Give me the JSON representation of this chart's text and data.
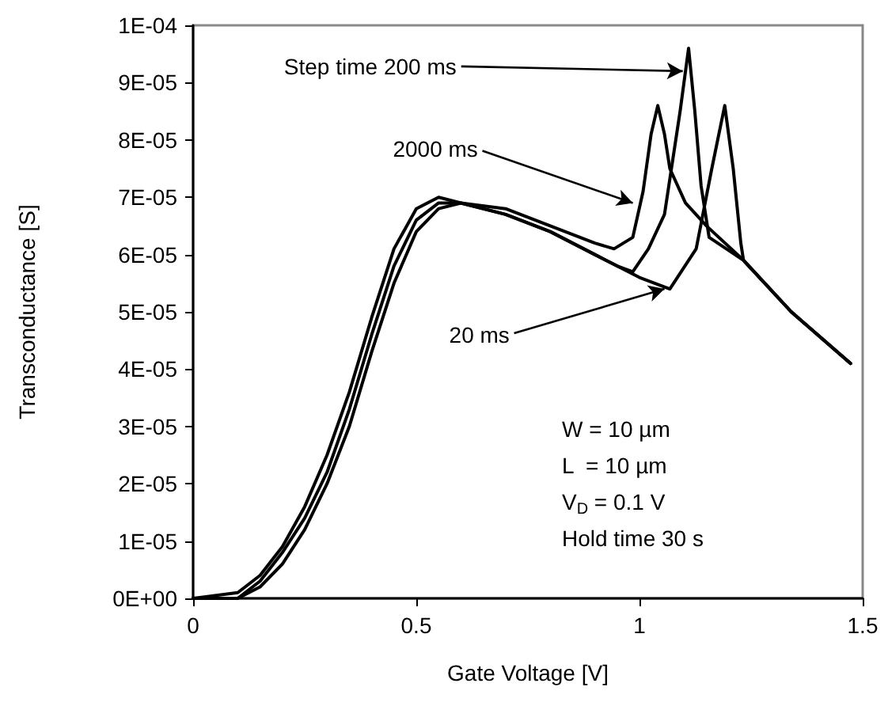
{
  "chart_data": {
    "type": "line",
    "xlabel": "Gate Voltage [V]",
    "ylabel": "Transconductance [S]",
    "series": [
      {
        "color": "#000000",
        "x": [
          0,
          0.1,
          0.15,
          0.2,
          0.25,
          0.3,
          0.35,
          0.4,
          0.45,
          0.5,
          0.55,
          0.6,
          0.7,
          0.8,
          0.9,
          0.943,
          0.985,
          1.008,
          1.026,
          1.041,
          1.056,
          1.068,
          1.103,
          1.15,
          1.233,
          1.34,
          1.473
        ],
        "values": [
          0,
          1e-06,
          4e-06,
          9e-06,
          1.6e-05,
          2.5e-05,
          3.6e-05,
          4.9e-05,
          6.1e-05,
          6.8e-05,
          7e-05,
          6.9e-05,
          6.8e-05,
          6.5e-05,
          6.2e-05,
          6.1e-05,
          6.3e-05,
          7.1e-05,
          8.1e-05,
          8.6e-05,
          8.1e-05,
          7.5e-05,
          6.9e-05,
          6.5e-05,
          5.9e-05,
          5e-05,
          4.1e-05
        ]
      },
      {
        "color": "#000000",
        "x": [
          0,
          0.1,
          0.15,
          0.2,
          0.25,
          0.3,
          0.35,
          0.4,
          0.45,
          0.5,
          0.55,
          0.6,
          0.7,
          0.8,
          0.9,
          0.95,
          0.985,
          1.02,
          1.056,
          1.091,
          1.11,
          1.124,
          1.138,
          1.156,
          1.233,
          1.34,
          1.473
        ],
        "values": [
          0,
          0,
          3e-06,
          8e-06,
          1.4e-05,
          2.2e-05,
          3.3e-05,
          4.6e-05,
          5.8e-05,
          6.6e-05,
          6.9e-05,
          6.9e-05,
          6.7e-05,
          6.4e-05,
          6e-05,
          5.8e-05,
          5.7e-05,
          6.1e-05,
          6.7e-05,
          8.5e-05,
          9.6e-05,
          8.5e-05,
          7.2e-05,
          6.3e-05,
          5.9e-05,
          5e-05,
          4.1e-05
        ]
      },
      {
        "color": "#000000",
        "x": [
          0,
          0.1,
          0.15,
          0.2,
          0.25,
          0.3,
          0.35,
          0.4,
          0.45,
          0.5,
          0.55,
          0.6,
          0.7,
          0.8,
          0.9,
          1.0,
          1.068,
          1.127,
          1.162,
          1.191,
          1.21,
          1.227,
          1.233,
          1.34,
          1.473
        ],
        "values": [
          0,
          0,
          2e-06,
          6e-06,
          1.2e-05,
          2e-05,
          3e-05,
          4.3e-05,
          5.5e-05,
          6.4e-05,
          6.8e-05,
          6.9e-05,
          6.7e-05,
          6.4e-05,
          6e-05,
          5.6e-05,
          5.4e-05,
          6.1e-05,
          7.5e-05,
          8.6e-05,
          7.5e-05,
          6.2e-05,
          5.9e-05,
          5e-05,
          4.1e-05
        ]
      }
    ],
    "annotations": [
      {
        "text": "Step time 200 ms",
        "x": 1.097,
        "y": 9.2e-05
      },
      {
        "text": "2000 ms",
        "x": 0.985,
        "y": 6.9e-05
      },
      {
        "text": "20 ms",
        "x": 1.056,
        "y": 5.4e-05
      },
      "W = 10 µm",
      "L  = 10 µm",
      "V$_{D}$ = 0.1 V",
      "Hold time 30 s"
    ],
    "xlim": [
      0,
      1.5
    ],
    "xticks": [
      0,
      0.5,
      1,
      1.5
    ],
    "ylim": [
      0,
      0.0001
    ],
    "yticks": [
      {
        "value": 0,
        "label": "0E+00"
      },
      {
        "value": 1e-05,
        "label": "1E-05"
      },
      {
        "value": 2e-05,
        "label": "2E-05"
      },
      {
        "value": 3e-05,
        "label": "3E-05"
      },
      {
        "value": 4e-05,
        "label": "4E-05"
      },
      {
        "value": 5e-05,
        "label": "5E-05"
      },
      {
        "value": 6e-05,
        "label": "6E-05"
      },
      {
        "value": 7e-05,
        "label": "7E-05"
      },
      {
        "value": 8e-05,
        "label": "8E-05"
      },
      {
        "value": 9e-05,
        "label": "9E-05"
      },
      {
        "value": 0.0001,
        "label": "1E-04"
      }
    ],
    "grid": false,
    "marker": "none",
    "line_style": "solid"
  }
}
